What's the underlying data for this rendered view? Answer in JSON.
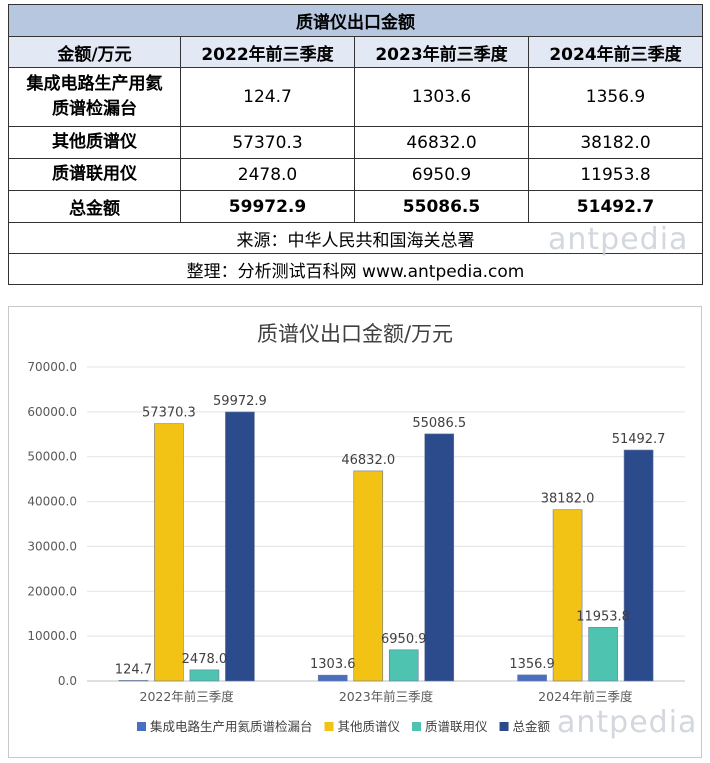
{
  "table": {
    "title": "质谱仪出口金额",
    "header": [
      "金额/万元",
      "2022年前三季度",
      "2023年前三季度",
      "2024年前三季度"
    ],
    "rows": [
      {
        "label_lines": [
          "集成电路生产用氦",
          "质谱检漏台"
        ],
        "values": [
          "124.7",
          "1303.6",
          "1356.9"
        ]
      },
      {
        "label_lines": [
          "其他质谱仪"
        ],
        "values": [
          "57370.3",
          "46832.0",
          "38182.0"
        ]
      },
      {
        "label_lines": [
          "质谱联用仪"
        ],
        "values": [
          "2478.0",
          "6950.9",
          "11953.8"
        ]
      }
    ],
    "total": {
      "label": "总金额",
      "values": [
        "59972.9",
        "55086.5",
        "51492.7"
      ]
    },
    "source": "来源：中华人民共和国海关总署",
    "compiled": "整理：分析测试百科网 www.antpedia.com"
  },
  "watermark": "antpedia",
  "colors": {
    "title_bg": "#b8c7e0",
    "header_bg": "#e3e9f4",
    "series": [
      "#4a6fc0",
      "#f2c215",
      "#4ec3b0",
      "#2b4b8c"
    ]
  },
  "chart_data": {
    "type": "bar",
    "title": "质谱仪出口金额/万元",
    "categories": [
      "2022年前三季度",
      "2023年前三季度",
      "2024年前三季度"
    ],
    "series": [
      {
        "name": "集成电路生产用氦质谱检漏台",
        "values": [
          124.7,
          1303.6,
          1356.9
        ]
      },
      {
        "name": "其他质谱仪",
        "values": [
          57370.3,
          46832.0,
          38182.0
        ]
      },
      {
        "name": "质谱联用仪",
        "values": [
          2478.0,
          6950.9,
          11953.8
        ]
      },
      {
        "name": "总金额",
        "values": [
          59972.9,
          55086.5,
          51492.7
        ]
      }
    ],
    "ylim": [
      0,
      70000
    ],
    "yticks": [
      0,
      10000,
      20000,
      30000,
      40000,
      50000,
      60000,
      70000
    ],
    "ytick_labels": [
      "0.0",
      "10000.0",
      "20000.0",
      "30000.0",
      "40000.0",
      "50000.0",
      "60000.0",
      "70000.0"
    ],
    "data_labels": [
      [
        "124.7",
        "1303.6",
        "1356.9"
      ],
      [
        "57370.3",
        "46832.0",
        "38182.0"
      ],
      [
        "2478.0",
        "6950.9",
        "11953.8"
      ],
      [
        "59972.9",
        "55086.5",
        "51492.7"
      ]
    ],
    "grid": true,
    "legend": "bottom"
  }
}
